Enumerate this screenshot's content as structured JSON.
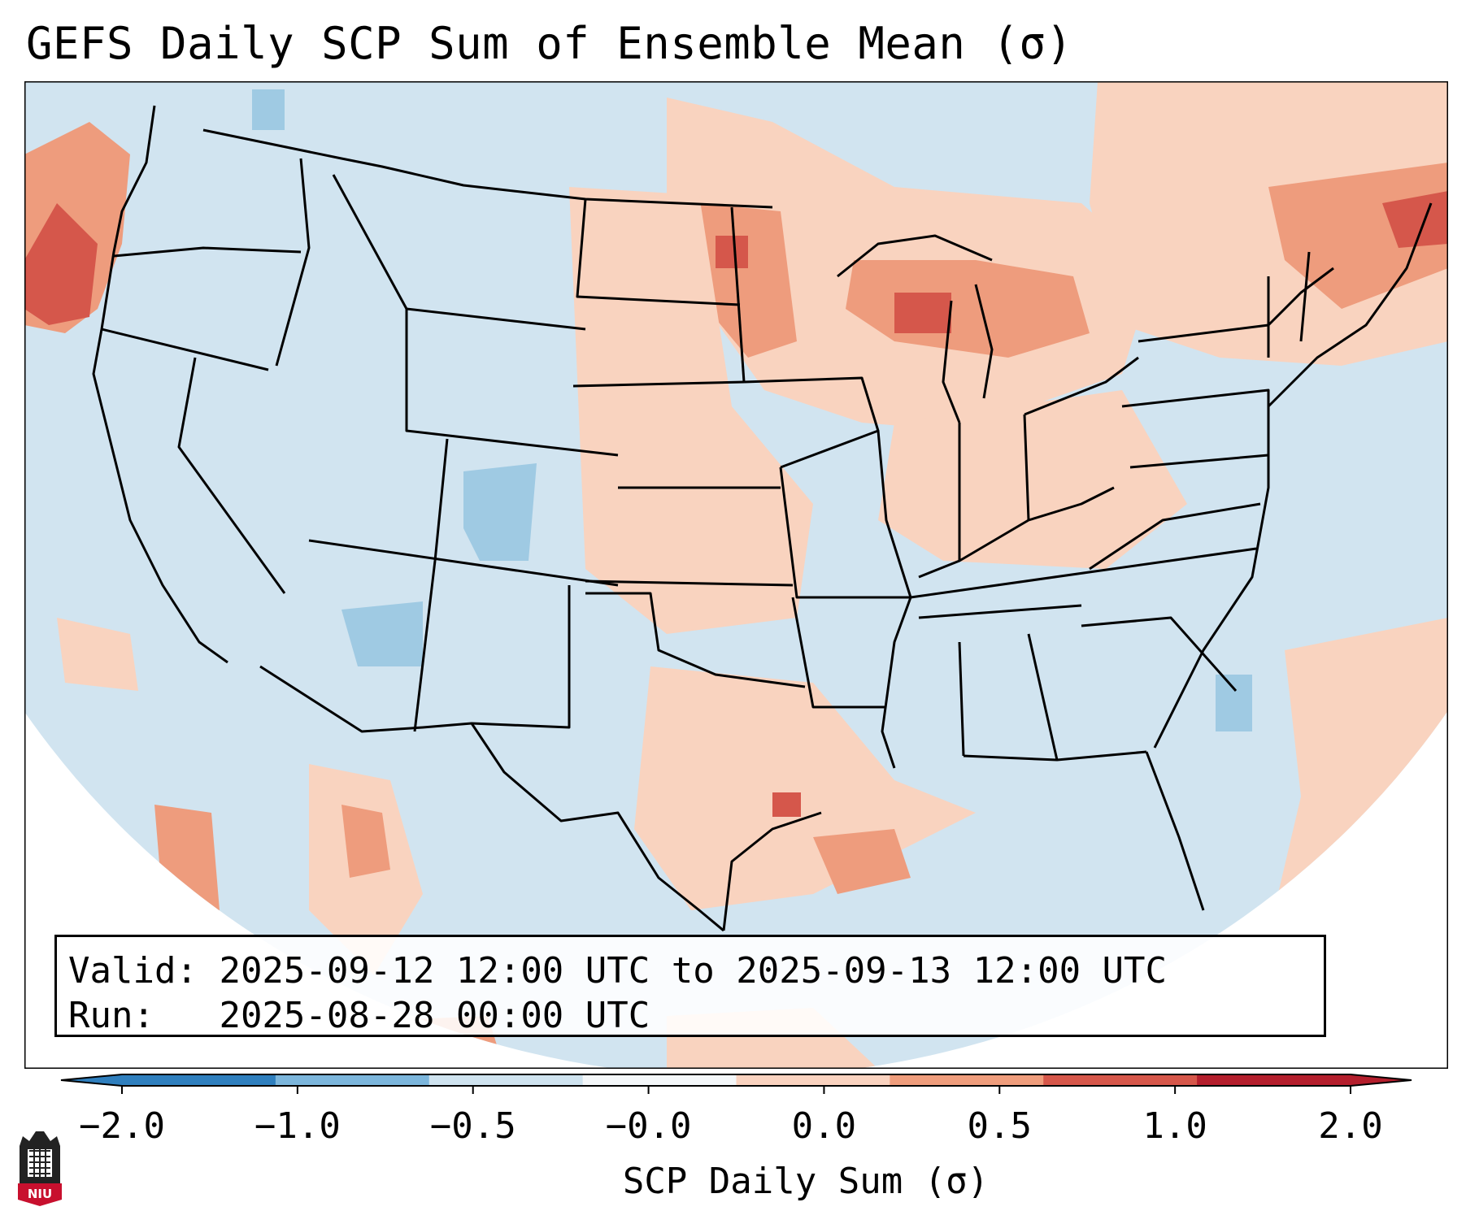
{
  "title": "GEFS Daily SCP Sum of Ensemble Mean (σ)",
  "info": {
    "valid_label": "Valid:",
    "valid_value": "2025-09-12 12:00 UTC to 2025-09-13 12:00 UTC",
    "run_label": "Run:",
    "run_value": "2025-08-28 00:00 UTC"
  },
  "colorbar": {
    "label": "SCP Daily Sum (σ)",
    "ticks": [
      "−2.0",
      "−1.0",
      "−0.5",
      "−0.0",
      "0.0",
      "0.5",
      "1.0",
      "2.0"
    ],
    "bin_colors": [
      "#2f7fbe",
      "#7cb6dc",
      "#cfe3ef",
      "#f4f7f9",
      "#fad3c0",
      "#ef9d7c",
      "#d6574a",
      "#b41e2c"
    ],
    "extend": "both"
  },
  "map": {
    "region": "Contiguous United States",
    "background_class_color": "#d1e4f0",
    "anomaly_colors": {
      "slightly_positive": "#f9d3bf",
      "positive": "#ee9c7d",
      "strong_positive": "#d5574b",
      "negative": "#9fcae3"
    }
  },
  "logo": {
    "text": "NIU"
  }
}
